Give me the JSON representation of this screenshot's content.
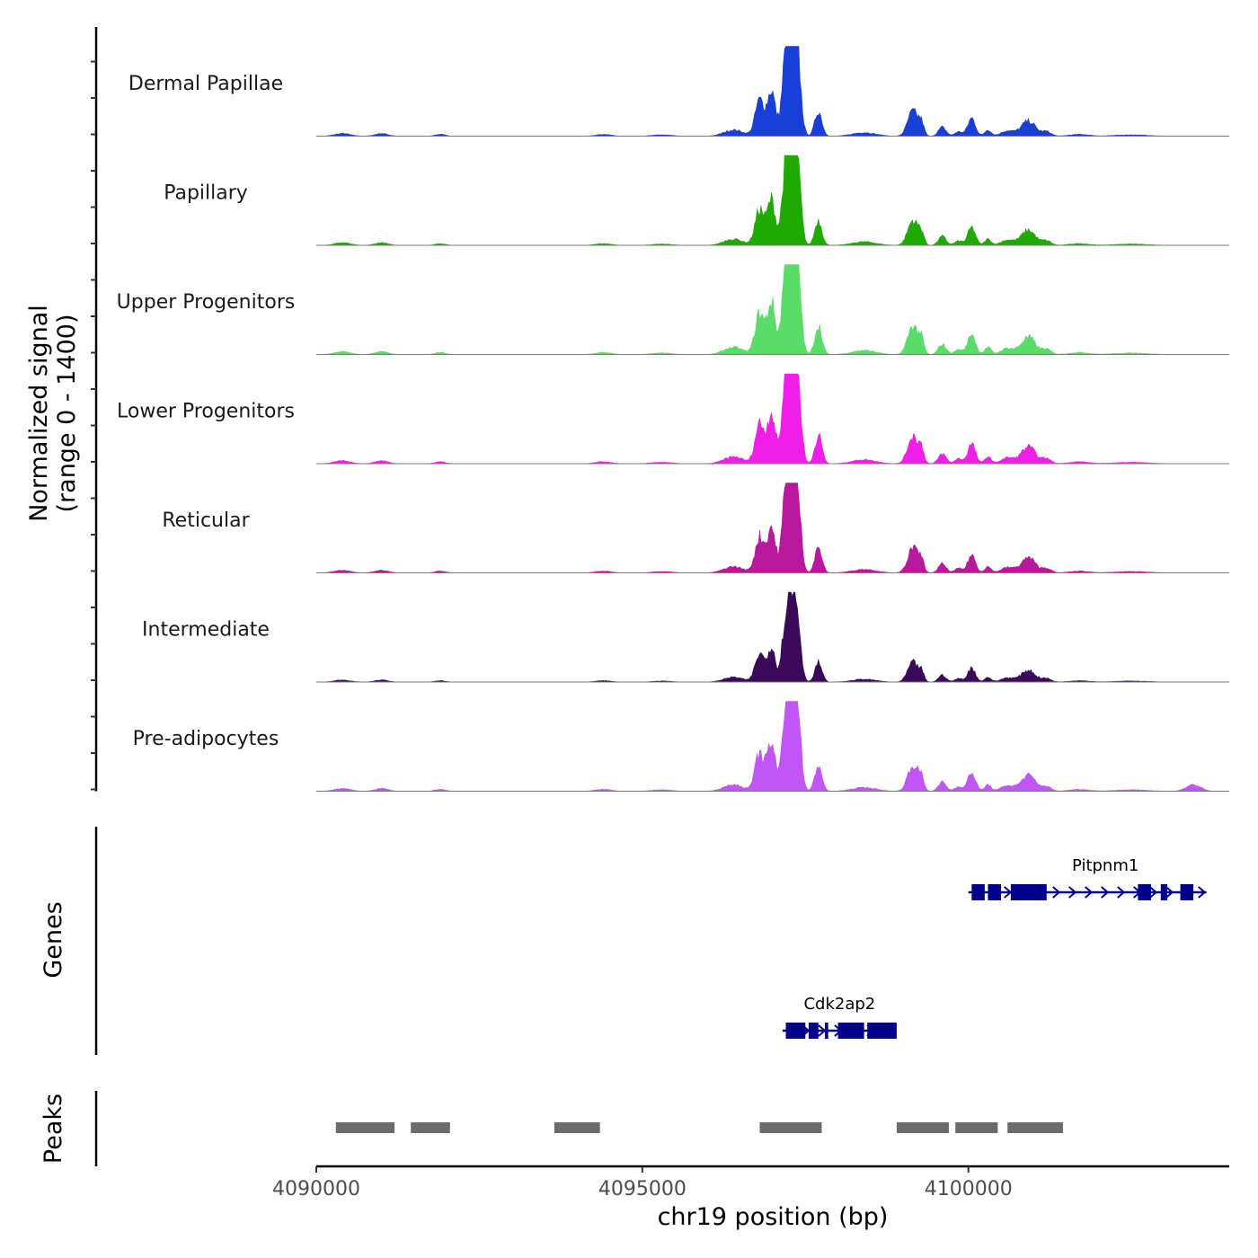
{
  "chart_data": {
    "type": "area",
    "title": "",
    "xlabel": "chr19 position (bp)",
    "ylabel_line1": "Normalized signal",
    "ylabel_line2": "(range 0 - 1400)",
    "ylim": [
      0,
      1400
    ],
    "xlim": [
      4090000,
      4104000
    ],
    "x_ticks": [
      4090000,
      4095000,
      4100000
    ],
    "x_tick_labels": [
      "4090000",
      "4095000",
      "4100000"
    ],
    "coverage_peak_shape": [
      {
        "pos": 4090400,
        "width": 120,
        "rel": 0.03
      },
      {
        "pos": 4091000,
        "width": 100,
        "rel": 0.03
      },
      {
        "pos": 4091900,
        "width": 80,
        "rel": 0.02
      },
      {
        "pos": 4094400,
        "width": 120,
        "rel": 0.02
      },
      {
        "pos": 4095300,
        "width": 150,
        "rel": 0.015
      },
      {
        "pos": 4096400,
        "width": 150,
        "rel": 0.07
      },
      {
        "pos": 4096800,
        "width": 70,
        "rel": 0.4
      },
      {
        "pos": 4096980,
        "width": 60,
        "rel": 0.5
      },
      {
        "pos": 4097200,
        "width": 60,
        "rel": 0.7
      },
      {
        "pos": 4097300,
        "width": 75,
        "rel": 0.92
      },
      {
        "pos": 4097380,
        "width": 55,
        "rel": 0.55
      },
      {
        "pos": 4097700,
        "width": 55,
        "rel": 0.28
      },
      {
        "pos": 4098400,
        "width": 180,
        "rel": 0.04
      },
      {
        "pos": 4099150,
        "width": 80,
        "rel": 0.28
      },
      {
        "pos": 4099280,
        "width": 40,
        "rel": 0.12
      },
      {
        "pos": 4099600,
        "width": 60,
        "rel": 0.1
      },
      {
        "pos": 4099850,
        "width": 60,
        "rel": 0.05
      },
      {
        "pos": 4100050,
        "width": 60,
        "rel": 0.2
      },
      {
        "pos": 4100300,
        "width": 50,
        "rel": 0.07
      },
      {
        "pos": 4100600,
        "width": 100,
        "rel": 0.06
      },
      {
        "pos": 4100920,
        "width": 110,
        "rel": 0.17
      },
      {
        "pos": 4101200,
        "width": 70,
        "rel": 0.05
      },
      {
        "pos": 4101700,
        "width": 150,
        "rel": 0.02
      },
      {
        "pos": 4102500,
        "width": 250,
        "rel": 0.015
      }
    ],
    "series": [
      {
        "name": "Dermal Papillae",
        "color": "#1a3fd8",
        "scale": 1.0
      },
      {
        "name": "Papillary",
        "color": "#1faa00",
        "scale": 1.0
      },
      {
        "name": "Upper Progenitors",
        "color": "#5adc6a",
        "scale": 1.15
      },
      {
        "name": "Lower Progenitors",
        "color": "#f01ee6",
        "scale": 1.12
      },
      {
        "name": "Reticular",
        "color": "#b8189e",
        "scale": 1.0
      },
      {
        "name": "Intermediate",
        "color": "#3a0a58",
        "scale": 0.78
      },
      {
        "name": "Pre-adipocytes",
        "color": "#c256f5",
        "scale": 1.05,
        "extra_peaks": [
          {
            "pos": 4103450,
            "width": 110,
            "rel": 0.07
          }
        ]
      }
    ],
    "genes_label": "Genes",
    "genes": [
      {
        "name": "Pitpnm1",
        "start": 4100000,
        "end": 4103650,
        "strand": "+",
        "color": "#00008b",
        "exons": [
          [
            4100050,
            4100250
          ],
          [
            4100300,
            4100500
          ],
          [
            4100650,
            4101200
          ],
          [
            4102600,
            4102800
          ],
          [
            4102950,
            4103050
          ],
          [
            4103250,
            4103450
          ]
        ]
      },
      {
        "name": "Cdk2ap2",
        "start": 4097150,
        "end": 4098900,
        "strand": "+",
        "color": "#00008b",
        "exons": [
          [
            4097200,
            4097500
          ],
          [
            4097550,
            4097700
          ],
          [
            4097800,
            4097850
          ],
          [
            4098000,
            4098400
          ],
          [
            4098450,
            4098900
          ]
        ]
      }
    ],
    "peaks_label": "Peaks",
    "peaks_color": "#6b6b6b",
    "peaks": [
      [
        4090300,
        4091200
      ],
      [
        4091450,
        4092050
      ],
      [
        4093650,
        4094350
      ],
      [
        4096800,
        4097750
      ],
      [
        4098900,
        4099700
      ],
      [
        4099800,
        4100450
      ],
      [
        4100600,
        4101450
      ]
    ]
  }
}
